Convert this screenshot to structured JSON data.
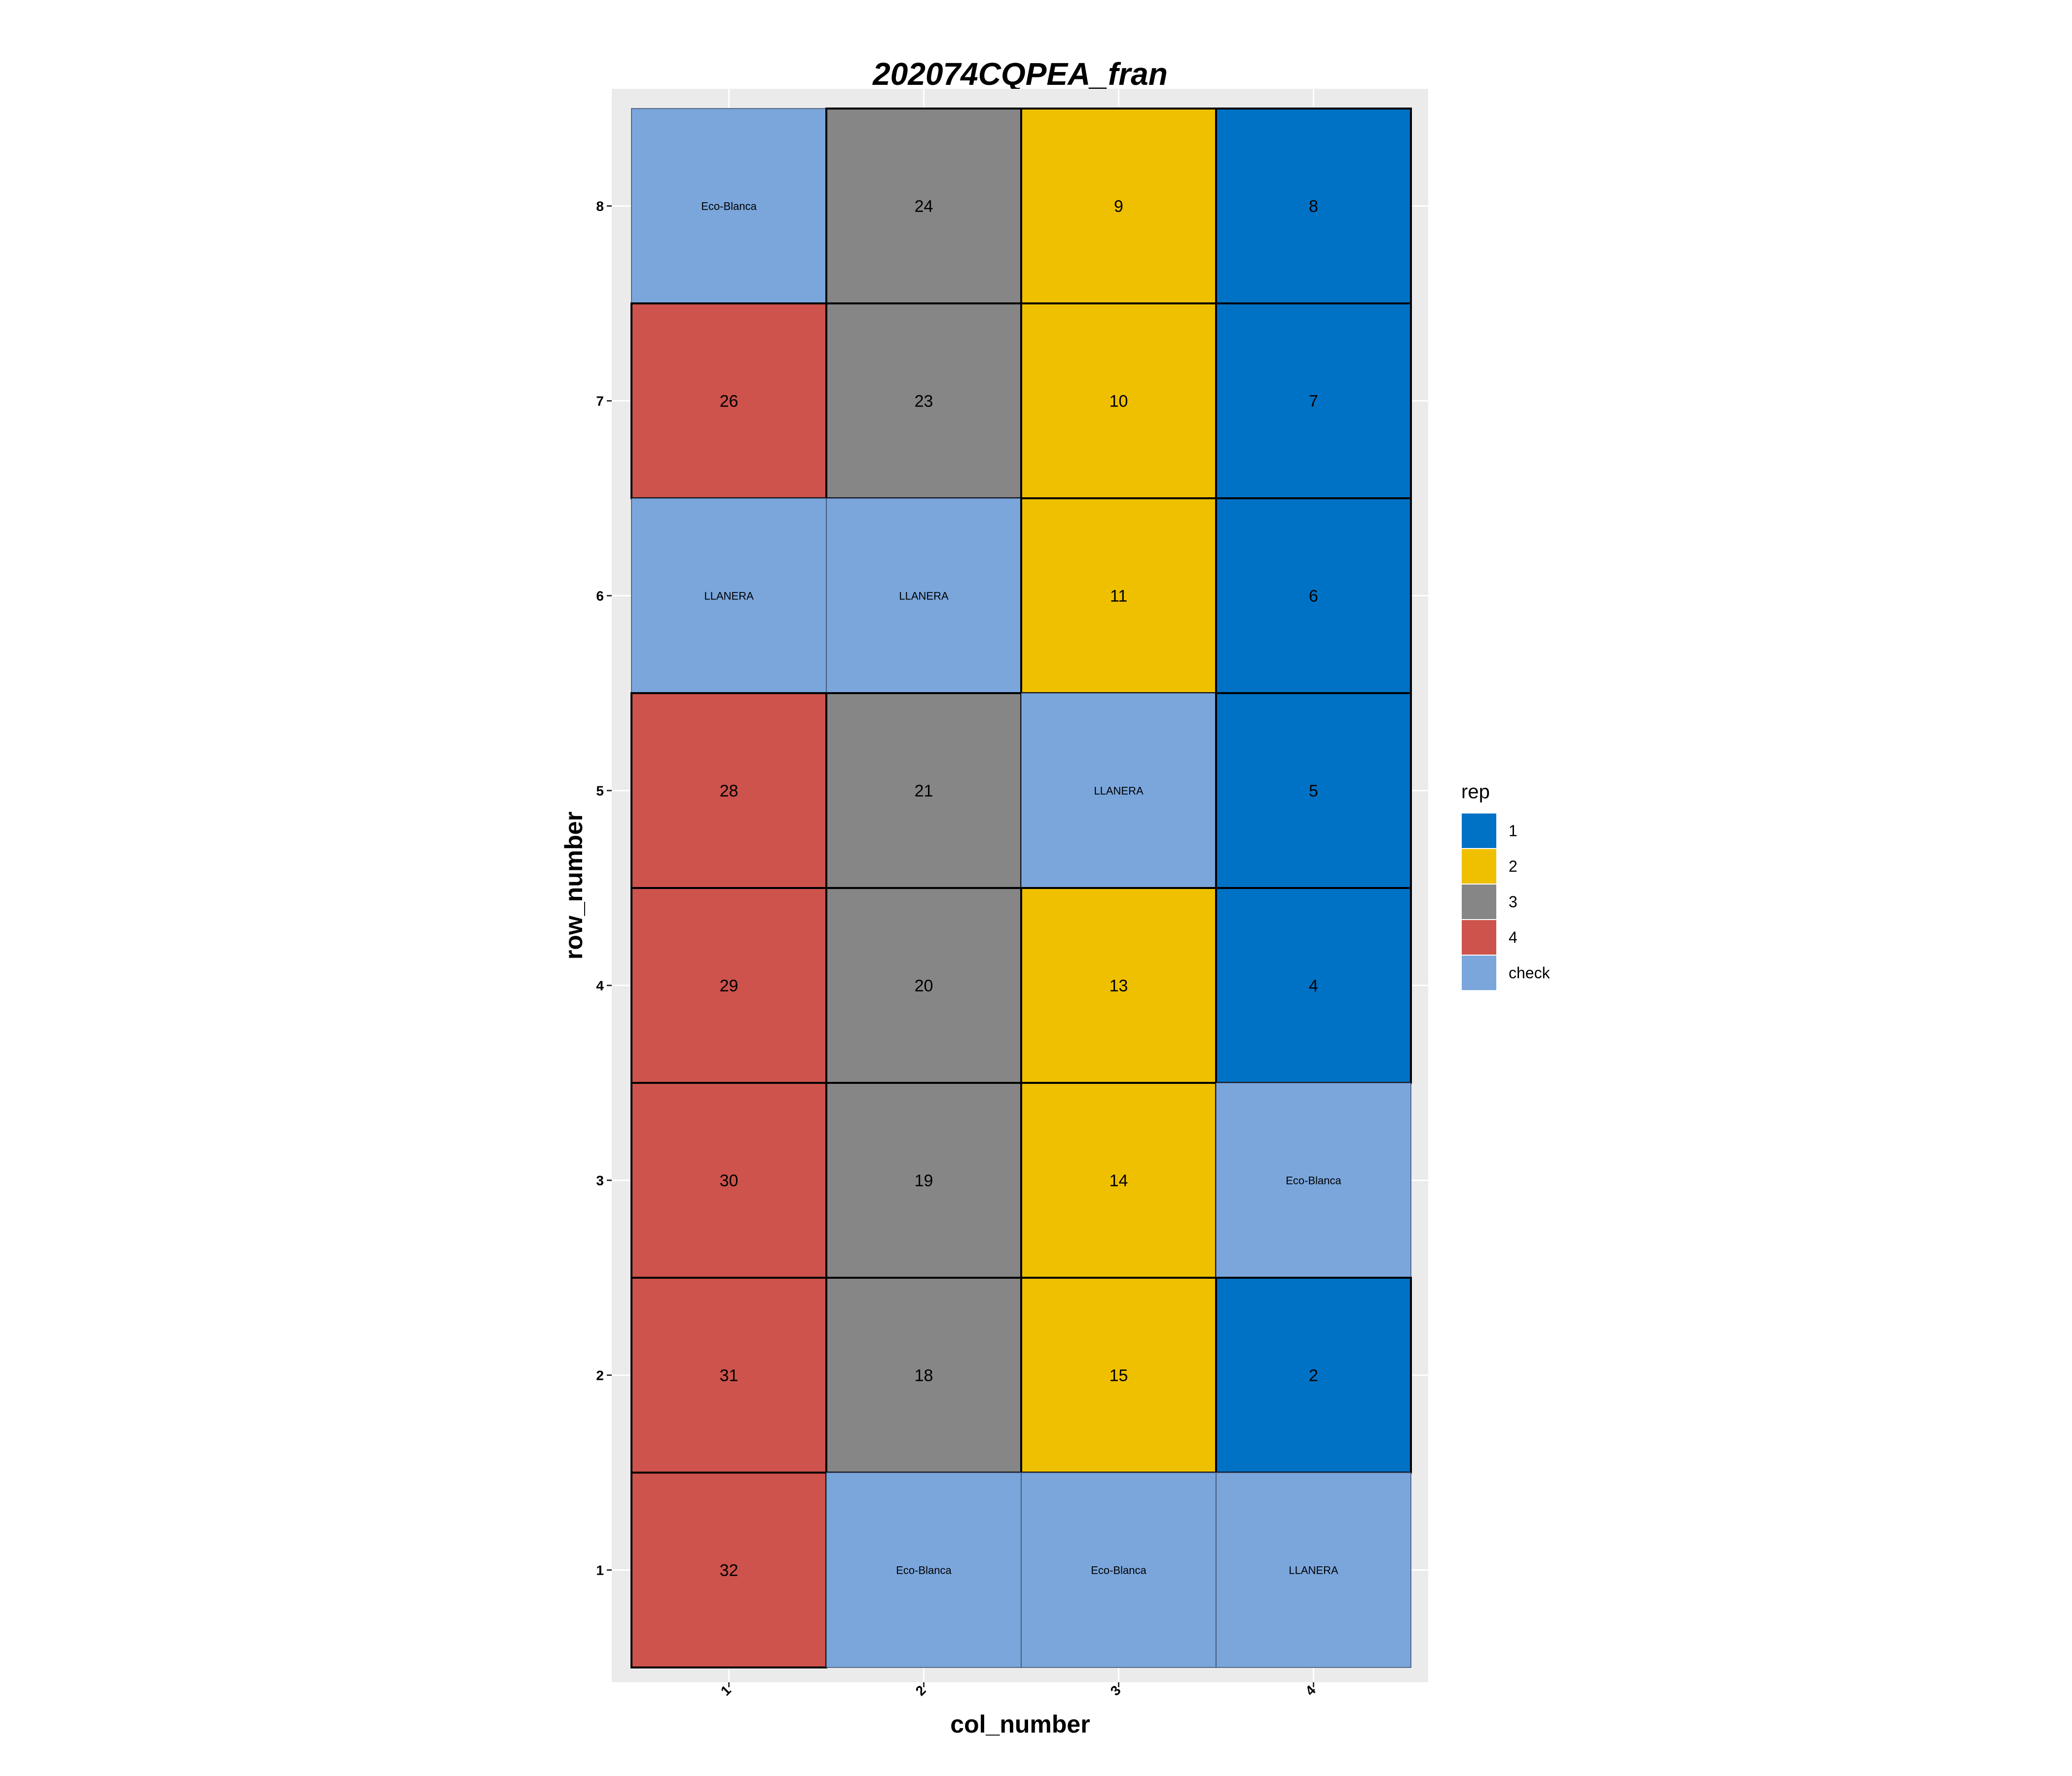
{
  "chart_data": {
    "type": "heatmap",
    "title": "202074CQPEA_fran",
    "xlabel": "col_number",
    "ylabel": "row_number",
    "x_ticks": [
      "1",
      "2",
      "3",
      "4"
    ],
    "y_ticks": [
      "1",
      "2",
      "3",
      "4",
      "5",
      "6",
      "7",
      "8"
    ],
    "grid": true,
    "legend": {
      "title": "rep",
      "position": "right",
      "items": [
        {
          "label": "1",
          "color": "#0072C6"
        },
        {
          "label": "2",
          "color": "#EFC000"
        },
        {
          "label": "3",
          "color": "#868686"
        },
        {
          "label": "4",
          "color": "#CD534C"
        },
        {
          "label": "check",
          "color": "#7AA6DC"
        }
      ]
    },
    "cells": [
      {
        "col": 1,
        "row": 8,
        "rep": "check",
        "label": "Eco-Blanca"
      },
      {
        "col": 2,
        "row": 8,
        "rep": "3",
        "label": "24"
      },
      {
        "col": 3,
        "row": 8,
        "rep": "2",
        "label": "9"
      },
      {
        "col": 4,
        "row": 8,
        "rep": "1",
        "label": "8"
      },
      {
        "col": 1,
        "row": 7,
        "rep": "4",
        "label": "26"
      },
      {
        "col": 2,
        "row": 7,
        "rep": "3",
        "label": "23"
      },
      {
        "col": 3,
        "row": 7,
        "rep": "2",
        "label": "10"
      },
      {
        "col": 4,
        "row": 7,
        "rep": "1",
        "label": "7"
      },
      {
        "col": 1,
        "row": 6,
        "rep": "check",
        "label": "LLANERA"
      },
      {
        "col": 2,
        "row": 6,
        "rep": "check",
        "label": "LLANERA"
      },
      {
        "col": 3,
        "row": 6,
        "rep": "2",
        "label": "11"
      },
      {
        "col": 4,
        "row": 6,
        "rep": "1",
        "label": "6"
      },
      {
        "col": 1,
        "row": 5,
        "rep": "4",
        "label": "28"
      },
      {
        "col": 2,
        "row": 5,
        "rep": "3",
        "label": "21"
      },
      {
        "col": 3,
        "row": 5,
        "rep": "check",
        "label": "LLANERA"
      },
      {
        "col": 4,
        "row": 5,
        "rep": "1",
        "label": "5"
      },
      {
        "col": 1,
        "row": 4,
        "rep": "4",
        "label": "29"
      },
      {
        "col": 2,
        "row": 4,
        "rep": "3",
        "label": "20"
      },
      {
        "col": 3,
        "row": 4,
        "rep": "2",
        "label": "13"
      },
      {
        "col": 4,
        "row": 4,
        "rep": "1",
        "label": "4"
      },
      {
        "col": 1,
        "row": 3,
        "rep": "4",
        "label": "30"
      },
      {
        "col": 2,
        "row": 3,
        "rep": "3",
        "label": "19"
      },
      {
        "col": 3,
        "row": 3,
        "rep": "2",
        "label": "14"
      },
      {
        "col": 4,
        "row": 3,
        "rep": "check",
        "label": "Eco-Blanca"
      },
      {
        "col": 1,
        "row": 2,
        "rep": "4",
        "label": "31"
      },
      {
        "col": 2,
        "row": 2,
        "rep": "3",
        "label": "18"
      },
      {
        "col": 3,
        "row": 2,
        "rep": "2",
        "label": "15"
      },
      {
        "col": 4,
        "row": 2,
        "rep": "1",
        "label": "2"
      },
      {
        "col": 1,
        "row": 1,
        "rep": "4",
        "label": "32"
      },
      {
        "col": 2,
        "row": 1,
        "rep": "check",
        "label": "Eco-Blanca"
      },
      {
        "col": 3,
        "row": 1,
        "rep": "check",
        "label": "Eco-Blanca"
      },
      {
        "col": 4,
        "row": 1,
        "rep": "check",
        "label": "LLANERA"
      }
    ]
  }
}
